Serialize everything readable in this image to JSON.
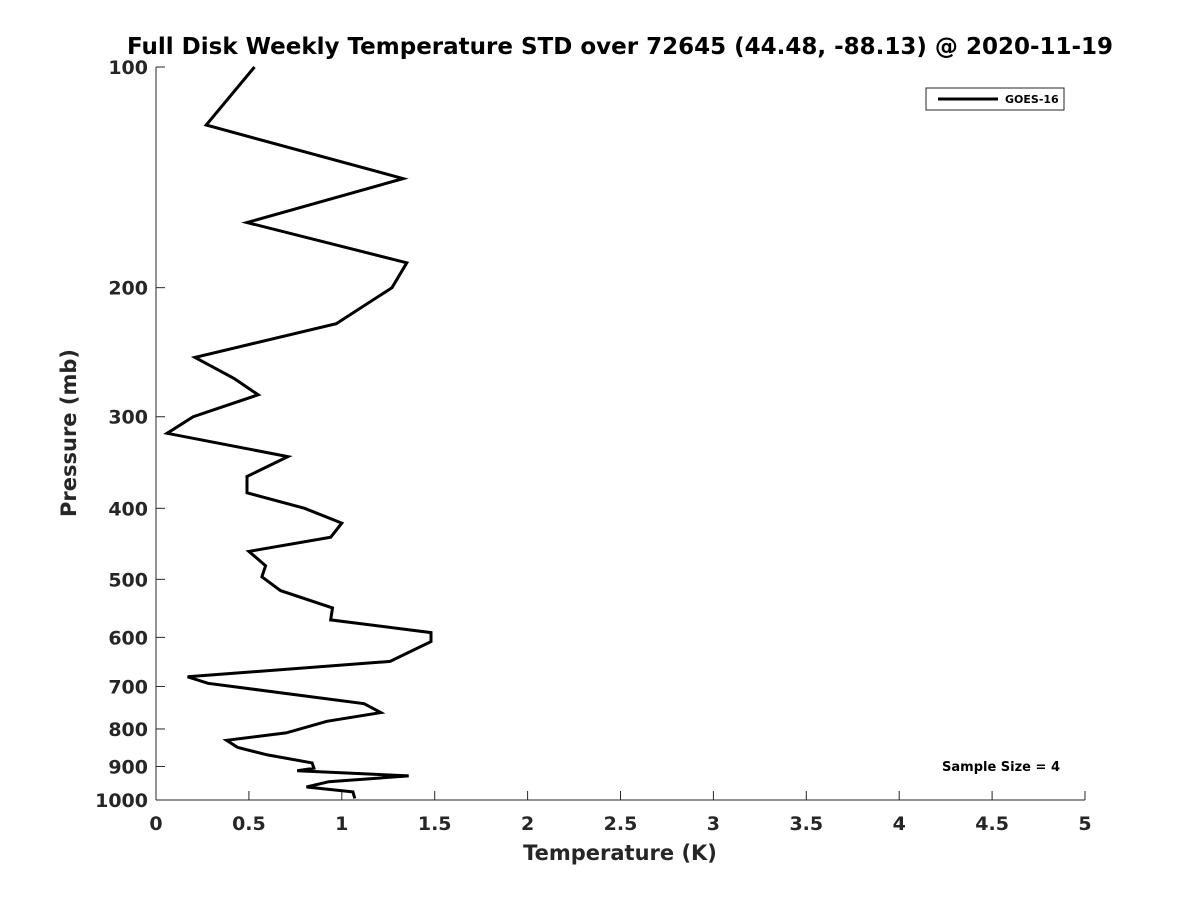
{
  "chart_data": {
    "type": "line",
    "title": "Full Disk Weekly Temperature STD over 72645 (44.48, -88.13) @ 2020-11-19",
    "xlabel": "Temperature (K)",
    "ylabel": "Pressure (mb)",
    "xlim": [
      0,
      5
    ],
    "ylim": [
      100,
      1000
    ],
    "y_scale": "log",
    "y_reversed": true,
    "x_ticks": [
      "0",
      "0.5",
      "1",
      "1.5",
      "2",
      "2.5",
      "3",
      "3.5",
      "4",
      "4.5",
      "5"
    ],
    "y_ticks": [
      "100",
      "200",
      "300",
      "400",
      "500",
      "600",
      "700",
      "800",
      "900",
      "1000"
    ],
    "grid": false,
    "legend_position": "top-right",
    "annotation": "Sample Size = 4",
    "series": [
      {
        "name": "GOES-16",
        "color": "#000000",
        "x": [
          0.53,
          0.27,
          1.33,
          0.49,
          1.35,
          1.27,
          0.97,
          0.21,
          0.42,
          0.55,
          0.2,
          0.06,
          0.71,
          0.49,
          0.49,
          0.8,
          1.0,
          0.94,
          0.5,
          0.59,
          0.57,
          0.67,
          0.95,
          0.94,
          1.48,
          1.48,
          1.26,
          0.17,
          0.28,
          1.12,
          1.21,
          0.92,
          0.7,
          0.38,
          0.44,
          0.6,
          0.84,
          0.85,
          0.76,
          1.36,
          0.93,
          0.81,
          1.06,
          1.07
        ],
        "y": [
          100,
          120,
          142,
          163,
          185,
          200,
          224,
          249,
          266,
          280,
          300,
          316,
          340,
          362,
          381,
          400,
          419,
          438,
          458,
          479,
          496,
          518,
          547,
          568,
          591,
          608,
          647,
          679,
          693,
          739,
          760,
          781,
          810,
          829,
          848,
          868,
          890,
          905,
          912,
          927,
          944,
          960,
          975,
          995
        ]
      }
    ]
  }
}
